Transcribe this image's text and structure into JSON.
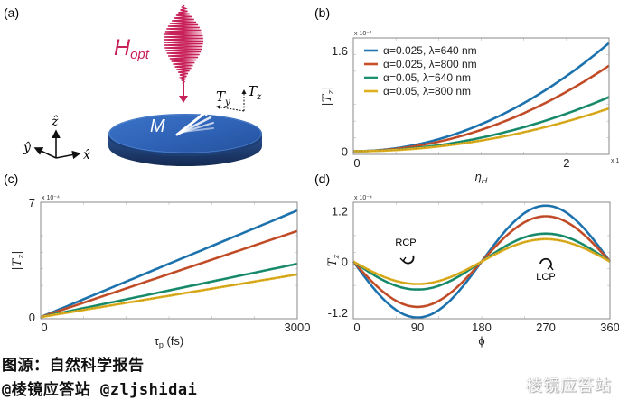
{
  "panels": {
    "a": {
      "label": "(a)",
      "h_opt_main": "H",
      "h_opt_sub": "opt",
      "magnet_label": "M",
      "torque_y_main": "T",
      "torque_y_sub": "y",
      "torque_z_main": "T",
      "torque_z_sub": "z",
      "axis_x": "x̂",
      "axis_y": "ŷ",
      "axis_z": "ẑ",
      "colors": {
        "pulse": "#c8215a",
        "disk": "#2f62b5",
        "disk_edge": "#1c3660"
      }
    },
    "b": {
      "label": "(b)"
    },
    "c": {
      "label": "(c)"
    },
    "d": {
      "label": "(d)",
      "rcp_label": "RCP",
      "lcp_label": "LCP"
    }
  },
  "legend": [
    {
      "label": "α=0.025, λ=640 nm",
      "color": "#1f77b4"
    },
    {
      "label": "α=0.025, λ=800 nm",
      "color": "#c8502a"
    },
    {
      "label": "α=0.05, λ=640 nm",
      "color": "#1a9070"
    },
    {
      "label": "α=0.05, λ=800 nm",
      "color": "#e0b020"
    }
  ],
  "chart_data": [
    {
      "panel": "b",
      "type": "line",
      "title": "",
      "xlabel": "η_H",
      "ylabel": "|T_z|",
      "x_multiplier": "x 10-3",
      "y_multiplier": "x 10-2",
      "xlim": [
        0,
        2.4
      ],
      "ylim": [
        -0.05,
        1.8
      ],
      "xticks": [
        0,
        2
      ],
      "xtick_labels": [
        "0",
        "2"
      ],
      "yticks": [
        0,
        1.6
      ],
      "ytick_labels": [
        "0",
        "1.6"
      ],
      "legend_position": "top-left",
      "series": [
        {
          "name": "α=0.025, λ=640 nm",
          "model": "quadratic",
          "x_end": 2.4,
          "y_end": 1.72
        },
        {
          "name": "α=0.025, λ=800 nm",
          "model": "quadratic",
          "x_end": 2.4,
          "y_end": 1.36
        },
        {
          "name": "α=0.05, λ=640 nm",
          "model": "quadratic",
          "x_end": 2.4,
          "y_end": 0.86
        },
        {
          "name": "α=0.05, λ=800 nm",
          "model": "quadratic",
          "x_end": 2.4,
          "y_end": 0.68
        }
      ]
    },
    {
      "panel": "c",
      "type": "line",
      "title": "",
      "xlabel": "τ_p (fs)",
      "ylabel": "|T_z|",
      "y_multiplier": "x 10-4",
      "xlim": [
        0,
        3000
      ],
      "ylim": [
        -0.1,
        7
      ],
      "xticks": [
        0,
        3000
      ],
      "xtick_labels": [
        "0",
        "3000"
      ],
      "yticks": [
        0,
        7
      ],
      "ytick_labels": [
        "0",
        "7"
      ],
      "series": [
        {
          "name": "α=0.025, λ=640 nm",
          "model": "linear",
          "x": [
            0,
            3000
          ],
          "y": [
            0,
            6.5
          ]
        },
        {
          "name": "α=0.025, λ=800 nm",
          "model": "linear",
          "x": [
            0,
            3000
          ],
          "y": [
            0,
            5.25
          ]
        },
        {
          "name": "α=0.05, λ=640 nm",
          "model": "linear",
          "x": [
            0,
            3000
          ],
          "y": [
            0,
            3.25
          ]
        },
        {
          "name": "α=0.05, λ=800 nm",
          "model": "linear",
          "x": [
            0,
            3000
          ],
          "y": [
            0,
            2.6
          ]
        }
      ]
    },
    {
      "panel": "d",
      "type": "line",
      "title": "",
      "xlabel": "ϕ",
      "ylabel": "T_z",
      "y_multiplier": "x 10-4",
      "xlim": [
        0,
        360
      ],
      "ylim": [
        -1.35,
        1.4
      ],
      "xticks": [
        0,
        90,
        180,
        270,
        360
      ],
      "xtick_labels": [
        "0",
        "90",
        "180",
        "270",
        "360"
      ],
      "yticks": [
        -1.2,
        0,
        1.2
      ],
      "ytick_labels": [
        "-1.2",
        "0",
        "1.2"
      ],
      "annotations": [
        "RCP",
        "LCP"
      ],
      "series": [
        {
          "name": "α=0.025, λ=640 nm",
          "model": "-A*sin(phi)",
          "amplitude": 1.32
        },
        {
          "name": "α=0.025, λ=800 nm",
          "model": "-A*sin(phi)",
          "amplitude": 1.07
        },
        {
          "name": "α=0.05, λ=640 nm",
          "model": "-A*sin(phi)",
          "amplitude": 0.66
        },
        {
          "name": "α=0.05, λ=800 nm",
          "model": "-A*sin(phi)",
          "amplitude": 0.53
        }
      ]
    }
  ],
  "caption": {
    "line1": "图源：自然科学报告",
    "line2": "@棱镜应答站 @zljshidai",
    "watermark": "棱镜应答站"
  }
}
